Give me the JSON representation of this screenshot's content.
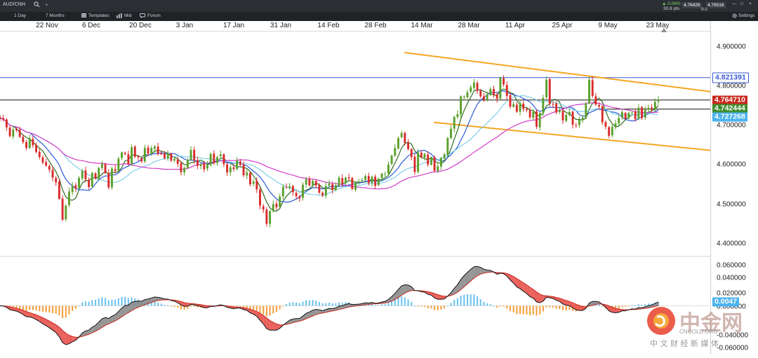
{
  "topbar": {
    "symbol": "AUD/CNH",
    "add_tab": "+",
    "change_pct": "▲ 0.06%",
    "change_pts": "30.8 pts",
    "bid": "4.76426",
    "spread": "9.0",
    "ask": "4.76516",
    "window_controls": [
      "—",
      "□",
      "×"
    ]
  },
  "toolbar": {
    "interval": "1 Day",
    "range": "7 Months",
    "templates": "Templates",
    "price_type": "Mid",
    "forum": "Forum",
    "settings": "Settings"
  },
  "colors": {
    "up_candle": "#5aa02c",
    "down_candle": "#d92b2b",
    "channel": "#f5a623",
    "hline_blue": "#3b5ad6",
    "hline_black": "#111111",
    "ma_fast": "#2e6b1e",
    "ma_mid": "#2a5bd7",
    "ma_light": "#7fd0e8",
    "ma_slow": "#d23cc8",
    "hist_pos": "#6ec3f0",
    "hist_neg": "#f5a040",
    "macd_fill_up": "#8a8a8a",
    "macd_fill_down": "#e8504a",
    "tag_red": "#c8281e",
    "tag_green": "#3e8e2e",
    "tag_blue": "#3b5ad6",
    "tag_lightblue": "#4ab3ef"
  },
  "icons": [
    "search-icon",
    "add-tab-icon",
    "templates-icon",
    "chart-type-icon",
    "forum-icon",
    "settings-icon",
    "minimize-icon",
    "maximize-icon",
    "close-icon",
    "scroll-marker-icon"
  ],
  "chart_data": [
    {
      "type": "candlestick",
      "symbol": "AUD/CNH",
      "interval": "1 Day",
      "x_tick_labels": [
        "22 Nov",
        "6 Dec",
        "20 Dec",
        "3 Jan",
        "17 Jan",
        "31 Jan",
        "14 Feb",
        "28 Feb",
        "14 Mar",
        "28 Mar",
        "11 Apr",
        "25 Apr",
        "9 May",
        "23 May"
      ],
      "y_tick_labels": [
        "4.900000",
        "4.800000",
        "4.700000",
        "4.600000",
        "4.500000",
        "4.400000"
      ],
      "ylim": [
        4.37,
        4.94
      ],
      "series": [
        {
          "values": [
            4.718,
            4.715,
            4.695,
            4.673,
            4.69,
            4.688,
            4.671,
            4.658,
            4.643,
            4.668,
            4.65,
            4.633,
            4.62,
            4.606,
            4.598,
            4.588,
            4.568,
            4.556,
            4.514,
            4.461,
            4.497,
            4.533,
            4.548,
            4.54,
            4.567,
            4.585,
            4.564,
            4.544,
            4.58,
            4.565,
            4.592,
            4.603,
            4.58,
            4.543,
            4.591,
            4.585,
            4.616,
            4.632,
            4.628,
            4.602,
            4.645,
            4.621,
            4.619,
            4.609,
            4.643,
            4.629,
            4.643,
            4.647,
            4.628,
            4.627,
            4.617,
            4.629,
            4.611,
            4.615,
            4.603,
            4.582,
            4.593,
            4.613,
            4.638,
            4.612,
            4.598,
            4.601,
            4.589,
            4.602,
            4.628,
            4.607,
            4.62,
            4.627,
            4.602,
            4.581,
            4.594,
            4.59,
            4.611,
            4.6,
            4.574,
            4.581,
            4.551,
            4.558,
            4.538,
            4.497,
            4.487,
            4.451,
            4.483,
            4.501,
            4.493,
            4.52,
            4.545,
            4.542,
            4.546,
            4.531,
            4.521,
            4.515,
            4.55,
            4.564,
            4.548,
            4.56,
            4.548,
            4.53,
            4.523,
            4.547,
            4.553,
            4.537,
            4.548,
            4.568,
            4.553,
            4.568,
            4.566,
            4.539,
            4.555,
            4.557,
            4.562,
            4.572,
            4.554,
            4.57,
            4.547,
            4.565,
            4.578,
            4.577,
            4.601,
            4.624,
            4.643,
            4.668,
            4.681,
            4.656,
            4.64,
            4.62,
            4.582,
            4.632,
            4.62,
            4.628,
            4.601,
            4.618,
            4.585,
            4.597,
            4.618,
            4.627,
            4.668,
            4.692,
            4.722,
            4.729,
            4.774,
            4.773,
            4.784,
            4.797,
            4.809,
            4.788,
            4.774,
            4.765,
            4.779,
            4.793,
            4.777,
            4.768,
            4.821,
            4.804,
            4.775,
            4.748,
            4.754,
            4.735,
            4.757,
            4.742,
            4.739,
            4.721,
            4.735,
            4.697,
            4.732,
            4.77,
            4.816,
            4.756,
            4.754,
            4.733,
            4.739,
            4.713,
            4.727,
            4.734,
            4.702,
            4.7,
            4.714,
            4.72,
            4.756,
            4.816,
            4.775,
            4.753,
            4.748,
            4.708,
            4.697,
            4.674,
            4.697,
            4.705,
            4.719,
            4.734,
            4.717,
            4.732,
            4.733,
            4.716,
            4.745,
            4.719,
            4.74,
            4.745,
            4.741,
            4.76,
            4.765
          ]
        },
        {
          "name": "",
          "values": "moving average lines (4 series): dark green fast, blue, light blue, magenta slow"
        }
      ],
      "horizontal_lines": [
        4.821391,
        4.76471,
        4.742444
      ],
      "channel": {
        "upper": [
          [
            4.885,
            "14 Mar"
          ],
          [
            4.786,
            "end"
          ]
        ],
        "lower": [
          [
            4.708,
            "14 Mar"
          ],
          [
            4.637,
            "end"
          ]
        ]
      },
      "price_tags": [
        {
          "label": "4.821391",
          "kind": "line"
        },
        {
          "label": "4.764710",
          "kind": "last"
        },
        {
          "label": "4.742444",
          "kind": "ma"
        },
        {
          "label": "4.727268",
          "kind": "ma"
        }
      ]
    },
    {
      "type": "bar",
      "indicator": "MACD",
      "y_tick_labels": [
        "0.060000",
        "0.040000",
        "0.020000",
        "0.000000",
        "-0.040000",
        "-0.060000"
      ],
      "ylim": [
        -0.065,
        0.065
      ],
      "last_value_tag": "0.0047",
      "histogram_summary": "negative (orange) Nov-Dec, positive (blue) Dec-Jan, negative Jan, positive Feb-Mar, negative Apr-May"
    }
  ],
  "watermark": {
    "brand_cn": "中金网",
    "brand_en": "CNGOLD.ORG",
    "tagline": "中 文 财 经 新 媒 体"
  }
}
